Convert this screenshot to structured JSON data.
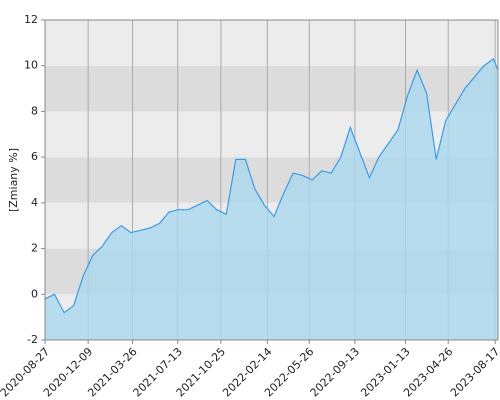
{
  "chart_data": {
    "type": "area",
    "y_label": "[Zmiany %]",
    "x": [
      "2020-08-27",
      "2020-09-19",
      "2020-10-12",
      "2020-11-04",
      "2020-11-27",
      "2020-12-20",
      "2021-01-12",
      "2021-02-04",
      "2021-02-27",
      "2021-03-22",
      "2021-04-14",
      "2021-05-07",
      "2021-05-30",
      "2021-06-22",
      "2021-07-15",
      "2021-08-07",
      "2021-08-30",
      "2021-09-22",
      "2021-10-15",
      "2021-11-07",
      "2021-11-30",
      "2021-12-23",
      "2022-01-15",
      "2022-02-07",
      "2022-03-02",
      "2022-03-25",
      "2022-04-17",
      "2022-05-10",
      "2022-06-02",
      "2022-06-25",
      "2022-07-18",
      "2022-08-10",
      "2022-09-02",
      "2022-09-25",
      "2022-10-18",
      "2022-11-10",
      "2022-12-03",
      "2022-12-26",
      "2023-01-18",
      "2023-02-10",
      "2023-03-05",
      "2023-03-28",
      "2023-04-20",
      "2023-05-13",
      "2023-06-05",
      "2023-06-28",
      "2023-07-21",
      "2023-08-13",
      "2023-08-24"
    ],
    "values": [
      -0.2,
      0,
      -0.8,
      -0.5,
      0.8,
      1.7,
      2.1,
      2.7,
      3.0,
      2.7,
      2.8,
      2.9,
      3.1,
      3.6,
      3.7,
      3.7,
      3.9,
      4.1,
      3.7,
      3.5,
      5.9,
      5.9,
      4.6,
      3.9,
      3.4,
      4.4,
      5.3,
      5.2,
      5.0,
      5.4,
      5.3,
      6.0,
      7.3,
      6.2,
      5.1,
      6.0,
      6.6,
      7.2,
      8.7,
      9.8,
      8.8,
      5.9,
      7.6,
      8.3,
      9.0,
      9.5,
      10.0,
      10.3,
      9.8
    ],
    "color": "#3b9be8",
    "fill_color": "#a9d8ef",
    "xlim": [
      "2020-08-27",
      "2023-08-24"
    ],
    "xticks": [
      "2020-08-27",
      "2020-12-09",
      "2021-03-26",
      "2021-07-13",
      "2021-10-25",
      "2022-02-14",
      "2022-05-26",
      "2022-09-13",
      "2023-01-13",
      "2023-04-26",
      "2023-08-17"
    ],
    "ylim": [
      -2,
      12
    ],
    "yticks": [
      -2,
      0,
      2,
      4,
      6,
      8,
      10,
      12
    ],
    "grid": true
  }
}
